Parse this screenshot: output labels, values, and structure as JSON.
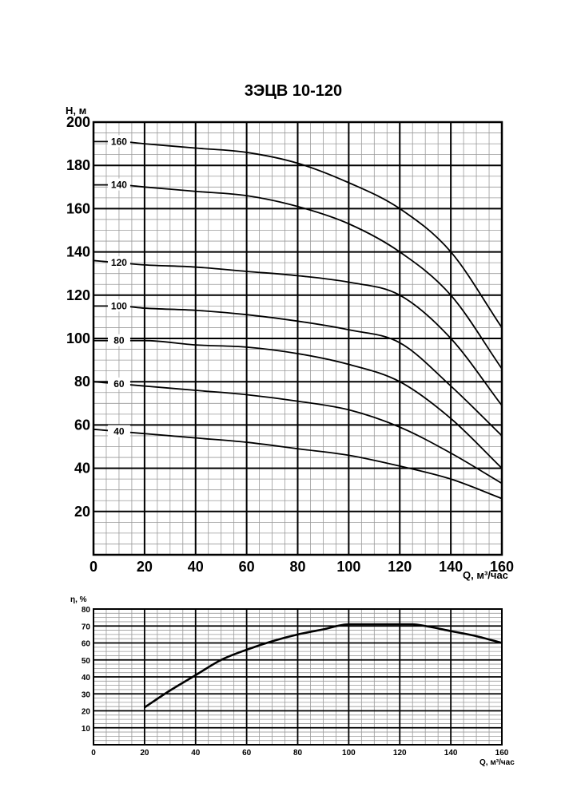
{
  "chart_data": [
    {
      "type": "line",
      "title": "3ЭЦВ 10-120",
      "ylabel": "H, м",
      "xlabel": "Q, м³/час",
      "xlim": [
        0,
        160
      ],
      "ylim": [
        0,
        200
      ],
      "x_ticks": [
        "0",
        "20",
        "40",
        "60",
        "80",
        "100",
        "120",
        "140",
        "160"
      ],
      "y_ticks": [
        "20",
        "40",
        "60",
        "80",
        "100",
        "120",
        "140",
        "160",
        "180",
        "200"
      ],
      "grid": true,
      "series": [
        {
          "name": "160",
          "x": [
            0,
            10,
            20,
            40,
            60,
            80,
            100,
            120,
            140,
            160
          ],
          "y": [
            191,
            191,
            190,
            188,
            186,
            181,
            172,
            160,
            140,
            105
          ]
        },
        {
          "name": "140",
          "x": [
            0,
            10,
            20,
            40,
            60,
            80,
            100,
            120,
            140,
            160
          ],
          "y": [
            171,
            171,
            170,
            168,
            166,
            161,
            153,
            140,
            120,
            86
          ]
        },
        {
          "name": "120",
          "x": [
            0,
            10,
            20,
            40,
            60,
            80,
            100,
            120,
            140,
            160
          ],
          "y": [
            136,
            135,
            134,
            133,
            131,
            129,
            126,
            120,
            100,
            69
          ]
        },
        {
          "name": "100",
          "x": [
            0,
            10,
            20,
            40,
            60,
            80,
            100,
            120,
            140,
            160
          ],
          "y": [
            115,
            115,
            114,
            113,
            111,
            108,
            104,
            98,
            78,
            55
          ]
        },
        {
          "name": "80",
          "x": [
            0,
            10,
            20,
            40,
            60,
            80,
            100,
            120,
            140,
            160
          ],
          "y": [
            99,
            99,
            99,
            97,
            96,
            93,
            88,
            80,
            63,
            40
          ]
        },
        {
          "name": "60",
          "x": [
            0,
            10,
            20,
            40,
            60,
            80,
            100,
            120,
            140,
            160
          ],
          "y": [
            80,
            79,
            78,
            76,
            74,
            71,
            67,
            59,
            47,
            33
          ]
        },
        {
          "name": "40",
          "x": [
            0,
            10,
            20,
            40,
            60,
            80,
            100,
            120,
            140,
            160
          ],
          "y": [
            58,
            57,
            56,
            54,
            52,
            49,
            46,
            41,
            35,
            26
          ]
        }
      ]
    },
    {
      "type": "line",
      "ylabel": "η, %",
      "xlabel": "Q, м³/час",
      "xlim": [
        0,
        160
      ],
      "ylim": [
        0,
        80
      ],
      "x_ticks": [
        "0",
        "20",
        "40",
        "60",
        "80",
        "100",
        "120",
        "140",
        "160"
      ],
      "y_ticks": [
        "10",
        "20",
        "30",
        "40",
        "50",
        "60",
        "70",
        "80"
      ],
      "grid": true,
      "series": [
        {
          "x": [
            20,
            30,
            40,
            50,
            60,
            70,
            80,
            90,
            100,
            110,
            120,
            125,
            130,
            140,
            150,
            160
          ],
          "y": [
            22,
            32,
            41,
            50,
            56,
            61,
            65,
            68,
            71,
            71,
            71,
            71,
            70,
            67,
            64,
            60
          ]
        }
      ]
    }
  ]
}
